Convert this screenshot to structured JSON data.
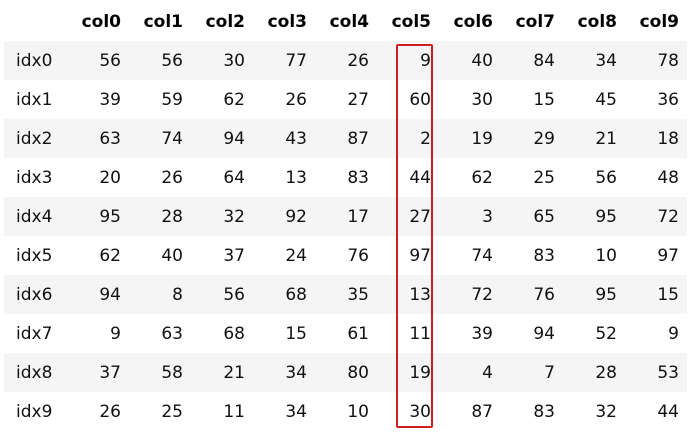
{
  "table": {
    "corner": "",
    "columns": [
      "col0",
      "col1",
      "col2",
      "col3",
      "col4",
      "col5",
      "col6",
      "col7",
      "col8",
      "col9"
    ],
    "rows": [
      {
        "index": "idx0",
        "values": [
          "56",
          "56",
          "30",
          "77",
          "26",
          "9",
          "40",
          "84",
          "34",
          "78"
        ]
      },
      {
        "index": "idx1",
        "values": [
          "39",
          "59",
          "62",
          "26",
          "27",
          "60",
          "30",
          "15",
          "45",
          "36"
        ]
      },
      {
        "index": "idx2",
        "values": [
          "63",
          "74",
          "94",
          "43",
          "87",
          "2",
          "19",
          "29",
          "21",
          "18"
        ]
      },
      {
        "index": "idx3",
        "values": [
          "20",
          "26",
          "64",
          "13",
          "83",
          "44",
          "62",
          "25",
          "56",
          "48"
        ]
      },
      {
        "index": "idx4",
        "values": [
          "95",
          "28",
          "32",
          "92",
          "17",
          "27",
          "3",
          "65",
          "95",
          "72"
        ]
      },
      {
        "index": "idx5",
        "values": [
          "62",
          "40",
          "37",
          "24",
          "76",
          "97",
          "74",
          "83",
          "10",
          "97"
        ]
      },
      {
        "index": "idx6",
        "values": [
          "94",
          "8",
          "56",
          "68",
          "35",
          "13",
          "72",
          "76",
          "95",
          "15"
        ]
      },
      {
        "index": "idx7",
        "values": [
          "9",
          "63",
          "68",
          "15",
          "61",
          "11",
          "39",
          "94",
          "52",
          "9"
        ]
      },
      {
        "index": "idx8",
        "values": [
          "37",
          "58",
          "21",
          "34",
          "80",
          "19",
          "4",
          "7",
          "28",
          "53"
        ]
      },
      {
        "index": "idx9",
        "values": [
          "26",
          "25",
          "11",
          "34",
          "10",
          "30",
          "87",
          "83",
          "32",
          "44"
        ]
      }
    ],
    "highlighted_column": "col5",
    "highlight_color": "#cc1f1f",
    "stripe_color": "#f5f5f5"
  }
}
